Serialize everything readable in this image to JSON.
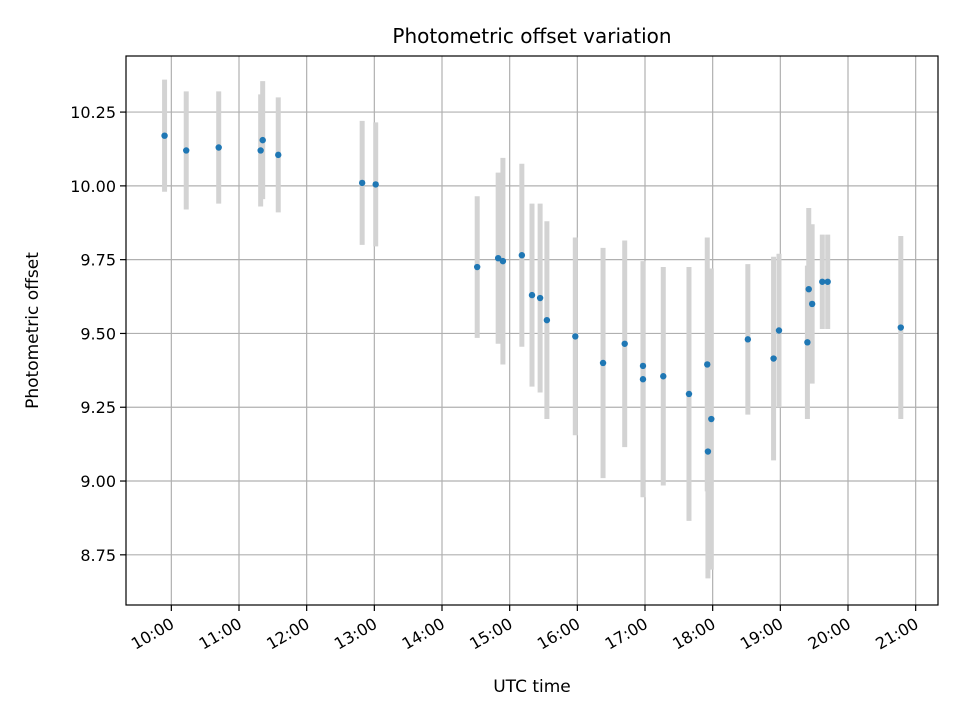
{
  "chart_data": {
    "type": "scatter",
    "title": "Photometric offset variation",
    "xlabel": "UTC time",
    "ylabel": "Photometric offset",
    "x_unit": "hours UTC",
    "xlim": [
      9.33,
      21.33
    ],
    "ylim": [
      8.58,
      10.44
    ],
    "x_ticks": [
      10,
      11,
      12,
      13,
      14,
      15,
      16,
      17,
      18,
      19,
      20,
      21
    ],
    "x_tick_labels": [
      "10:00",
      "11:00",
      "12:00",
      "13:00",
      "14:00",
      "15:00",
      "16:00",
      "17:00",
      "18:00",
      "19:00",
      "20:00",
      "21:00"
    ],
    "y_ticks": [
      8.75,
      9.0,
      9.25,
      9.5,
      9.75,
      10.0,
      10.25
    ],
    "y_tick_labels": [
      "8.75",
      "9.00",
      "9.25",
      "9.50",
      "9.75",
      "10.00",
      "10.25"
    ],
    "grid": true,
    "colors": {
      "point": "#1f77b4",
      "errorbar": "#d3d3d3",
      "grid": "#b0b0b0"
    },
    "points": [
      {
        "x": 9.9,
        "y": 10.17,
        "err": 0.19
      },
      {
        "x": 10.22,
        "y": 10.12,
        "err": 0.2
      },
      {
        "x": 10.7,
        "y": 10.13,
        "err": 0.19
      },
      {
        "x": 11.32,
        "y": 10.12,
        "err": 0.19
      },
      {
        "x": 11.35,
        "y": 10.155,
        "err": 0.2
      },
      {
        "x": 11.58,
        "y": 10.105,
        "err": 0.195
      },
      {
        "x": 12.82,
        "y": 10.01,
        "err": 0.21
      },
      {
        "x": 13.02,
        "y": 10.005,
        "err": 0.21
      },
      {
        "x": 14.52,
        "y": 9.725,
        "err": 0.24
      },
      {
        "x": 14.83,
        "y": 9.755,
        "err": 0.29
      },
      {
        "x": 14.9,
        "y": 9.745,
        "err": 0.35
      },
      {
        "x": 15.18,
        "y": 9.765,
        "err": 0.31
      },
      {
        "x": 15.33,
        "y": 9.63,
        "err": 0.31
      },
      {
        "x": 15.45,
        "y": 9.62,
        "err": 0.32
      },
      {
        "x": 15.55,
        "y": 9.545,
        "err": 0.335
      },
      {
        "x": 15.97,
        "y": 9.49,
        "err": 0.335
      },
      {
        "x": 16.38,
        "y": 9.4,
        "err": 0.39
      },
      {
        "x": 16.7,
        "y": 9.465,
        "err": 0.35
      },
      {
        "x": 16.97,
        "y": 9.39,
        "err": 0.35
      },
      {
        "x": 16.97,
        "y": 9.345,
        "err": 0.4
      },
      {
        "x": 17.27,
        "y": 9.355,
        "err": 0.37
      },
      {
        "x": 17.65,
        "y": 9.295,
        "err": 0.43
      },
      {
        "x": 17.92,
        "y": 9.395,
        "err": 0.43
      },
      {
        "x": 17.93,
        "y": 9.1,
        "err": 0.43
      },
      {
        "x": 17.98,
        "y": 9.21,
        "err": 0.51
      },
      {
        "x": 18.52,
        "y": 9.48,
        "err": 0.255
      },
      {
        "x": 18.9,
        "y": 9.415,
        "err": 0.345
      },
      {
        "x": 18.98,
        "y": 9.51,
        "err": 0.26
      },
      {
        "x": 19.4,
        "y": 9.47,
        "err": 0.26
      },
      {
        "x": 19.42,
        "y": 9.65,
        "err": 0.275
      },
      {
        "x": 19.47,
        "y": 9.6,
        "err": 0.27
      },
      {
        "x": 19.62,
        "y": 9.675,
        "err": 0.16
      },
      {
        "x": 19.7,
        "y": 9.675,
        "err": 0.16
      },
      {
        "x": 20.78,
        "y": 9.52,
        "err": 0.31
      }
    ]
  }
}
